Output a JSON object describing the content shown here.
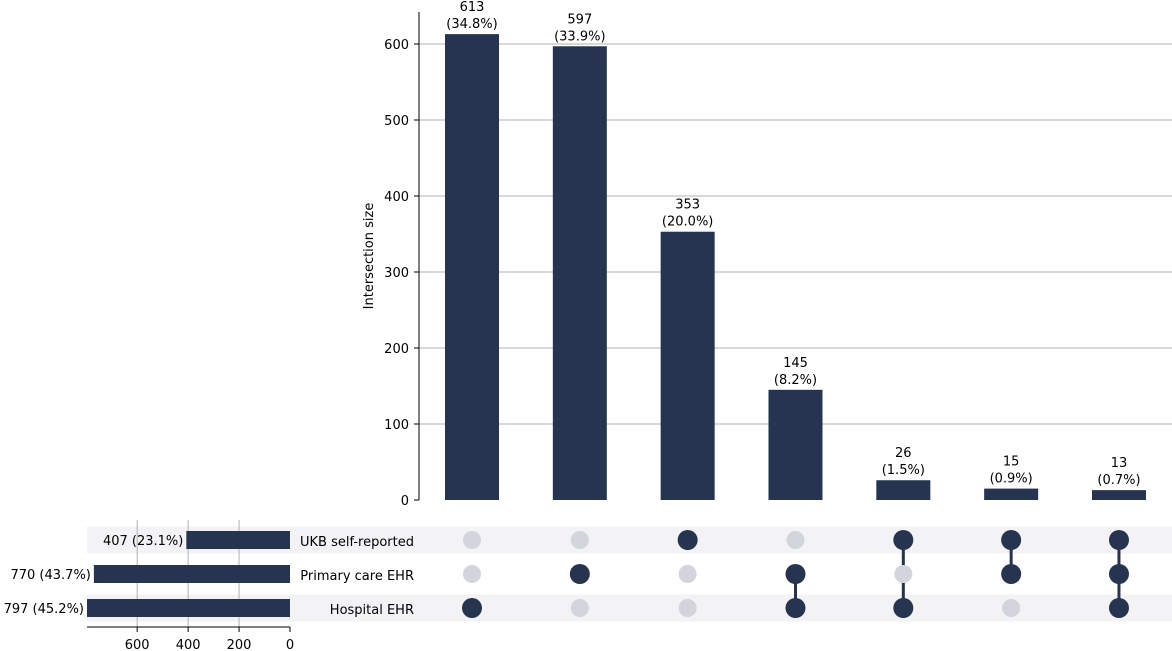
{
  "chart_data": {
    "type": "upset",
    "ylabel": "Intersection size",
    "ylim": [
      0,
      640
    ],
    "yticks": [
      0,
      100,
      200,
      300,
      400,
      500,
      600
    ],
    "grid": true,
    "bar_color": "#26344f",
    "inactive_dot_color": "#d3d5dc",
    "stripe_color": "#f3f3f6",
    "grid_color": "#b0b0b0",
    "sets": [
      {
        "name": "UKB self-reported",
        "size": 407,
        "label": "407 (23.1%)"
      },
      {
        "name": "Primary care EHR",
        "size": 770,
        "label": "770 (43.7%)"
      },
      {
        "name": "Hospital EHR",
        "size": 797,
        "label": "797 (45.2%)"
      }
    ],
    "set_size_xlim": [
      0,
      797
    ],
    "set_size_ticks": [
      600,
      400,
      200,
      0
    ],
    "intersections": [
      {
        "value": 613,
        "count_label": "613",
        "pct_label": "(34.8%)",
        "members": [
          false,
          false,
          true
        ]
      },
      {
        "value": 597,
        "count_label": "597",
        "pct_label": "(33.9%)",
        "members": [
          false,
          true,
          false
        ]
      },
      {
        "value": 353,
        "count_label": "353",
        "pct_label": "(20.0%)",
        "members": [
          true,
          false,
          false
        ]
      },
      {
        "value": 145,
        "count_label": "145",
        "pct_label": "(8.2%)",
        "members": [
          false,
          true,
          true
        ]
      },
      {
        "value": 26,
        "count_label": "26",
        "pct_label": "(1.5%)",
        "members": [
          true,
          false,
          true
        ]
      },
      {
        "value": 15,
        "count_label": "15",
        "pct_label": "(0.9%)",
        "members": [
          true,
          true,
          false
        ]
      },
      {
        "value": 13,
        "count_label": "13",
        "pct_label": "(0.7%)",
        "members": [
          true,
          true,
          true
        ]
      }
    ]
  }
}
